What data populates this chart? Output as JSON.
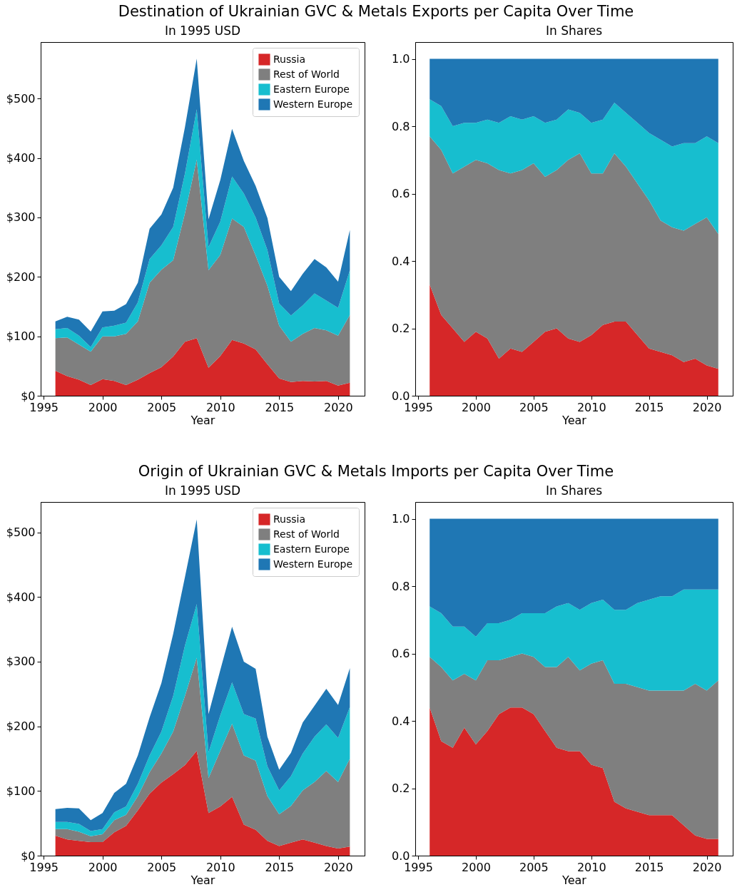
{
  "chart_data": [
    {
      "type": "area",
      "title": "Destination of Ukrainian GVC & Metals Exports per Capita Over Time",
      "subtitle": "In 1995 USD",
      "xlabel": "Year",
      "stacked": true,
      "legend": "top right",
      "x": [
        1996,
        1997,
        1998,
        1999,
        2000,
        2001,
        2002,
        2003,
        2004,
        2005,
        2006,
        2007,
        2008,
        2009,
        2010,
        2011,
        2012,
        2013,
        2014,
        2015,
        2016,
        2017,
        2018,
        2019,
        2020,
        2021
      ],
      "xlim": [
        1994.75,
        2022.25
      ],
      "xticks": [
        1995,
        2000,
        2005,
        2010,
        2015,
        2020
      ],
      "ylim": [
        0,
        595
      ],
      "yticks": [
        {
          "value": 0,
          "label": "$0"
        },
        {
          "value": 100,
          "label": "$100"
        },
        {
          "value": 200,
          "label": "$200"
        },
        {
          "value": 300,
          "label": "$300"
        },
        {
          "value": 400,
          "label": "$400"
        },
        {
          "value": 500,
          "label": "$500"
        }
      ],
      "series": [
        {
          "name": "Russia",
          "color": "#d62728",
          "values": [
            42,
            33,
            27,
            18,
            28,
            25,
            18,
            27,
            38,
            48,
            66,
            91,
            97,
            47,
            67,
            94,
            88,
            78,
            53,
            29,
            23,
            25,
            24,
            25,
            17,
            22
          ]
        },
        {
          "name": "Rest of World",
          "color": "#7f7f7f",
          "values": [
            55,
            65,
            59,
            56,
            72,
            75,
            86,
            98,
            152,
            164,
            162,
            216,
            300,
            164,
            170,
            204,
            196,
            158,
            132,
            89,
            68,
            79,
            90,
            85,
            84,
            114
          ]
        },
        {
          "name": "Eastern Europe",
          "color": "#17becf",
          "values": [
            15,
            16,
            15,
            8,
            15,
            18,
            19,
            32,
            40,
            41,
            56,
            67,
            85,
            39,
            56,
            71,
            56,
            64,
            60,
            37,
            44,
            48,
            58,
            50,
            47,
            75
          ]
        },
        {
          "name": "Western Europe",
          "color": "#1f77b4",
          "values": [
            13,
            19,
            27,
            26,
            27,
            25,
            31,
            33,
            51,
            52,
            66,
            78,
            85,
            47,
            70,
            80,
            55,
            53,
            54,
            45,
            41,
            53,
            58,
            56,
            44,
            68
          ]
        }
      ]
    },
    {
      "type": "area",
      "subtitle": "In Shares",
      "xlabel": "Year",
      "stacked": true,
      "x": [
        1996,
        1997,
        1998,
        1999,
        2000,
        2001,
        2002,
        2003,
        2004,
        2005,
        2006,
        2007,
        2008,
        2009,
        2010,
        2011,
        2012,
        2013,
        2014,
        2015,
        2016,
        2017,
        2018,
        2019,
        2020,
        2021
      ],
      "xlim": [
        1994.75,
        2022.25
      ],
      "xticks": [
        1995,
        2000,
        2005,
        2010,
        2015,
        2020
      ],
      "ylim": [
        0,
        1.05
      ],
      "yticks": [
        {
          "value": 0,
          "label": "0.0"
        },
        0.2,
        0.4,
        0.6,
        0.8,
        {
          "value": 1,
          "label": "1.0"
        }
      ],
      "series": [
        {
          "color": "#d62728",
          "values": [
            0.33,
            0.24,
            0.2,
            0.16,
            0.19,
            0.17,
            0.11,
            0.14,
            0.13,
            0.16,
            0.19,
            0.2,
            0.17,
            0.16,
            0.18,
            0.21,
            0.22,
            0.22,
            0.18,
            0.14,
            0.13,
            0.12,
            0.1,
            0.11,
            0.09,
            0.08
          ]
        },
        {
          "color": "#7f7f7f",
          "values": [
            0.44,
            0.49,
            0.46,
            0.52,
            0.51,
            0.52,
            0.56,
            0.52,
            0.54,
            0.53,
            0.46,
            0.47,
            0.53,
            0.56,
            0.48,
            0.45,
            0.5,
            0.46,
            0.45,
            0.44,
            0.39,
            0.38,
            0.39,
            0.4,
            0.44,
            0.4
          ]
        },
        {
          "color": "#17becf",
          "values": [
            0.11,
            0.13,
            0.14,
            0.13,
            0.11,
            0.13,
            0.14,
            0.17,
            0.15,
            0.14,
            0.16,
            0.15,
            0.15,
            0.12,
            0.15,
            0.16,
            0.15,
            0.16,
            0.18,
            0.2,
            0.24,
            0.24,
            0.26,
            0.24,
            0.24,
            0.27
          ]
        },
        {
          "color": "#1f77b4",
          "values": [
            0.12,
            0.14,
            0.2,
            0.19,
            0.19,
            0.18,
            0.19,
            0.17,
            0.18,
            0.17,
            0.19,
            0.18,
            0.15,
            0.16,
            0.19,
            0.18,
            0.13,
            0.16,
            0.19,
            0.22,
            0.24,
            0.26,
            0.25,
            0.25,
            0.23,
            0.25
          ]
        }
      ]
    },
    {
      "type": "area",
      "title": "Origin of Ukrainian GVC & Metals Imports per Capita Over Time",
      "subtitle": "In 1995 USD",
      "xlabel": "Year",
      "stacked": true,
      "legend": "top right",
      "x": [
        1996,
        1997,
        1998,
        1999,
        2000,
        2001,
        2002,
        2003,
        2004,
        2005,
        2006,
        2007,
        2008,
        2009,
        2010,
        2011,
        2012,
        2013,
        2014,
        2015,
        2016,
        2017,
        2018,
        2019,
        2020,
        2021
      ],
      "xlim": [
        1994.75,
        2022.25
      ],
      "xticks": [
        1995,
        2000,
        2005,
        2010,
        2015,
        2020
      ],
      "ylim": [
        0,
        547
      ],
      "yticks": [
        {
          "value": 0,
          "label": "$0"
        },
        {
          "value": 100,
          "label": "$100"
        },
        {
          "value": 200,
          "label": "$200"
        },
        {
          "value": 300,
          "label": "$300"
        },
        {
          "value": 400,
          "label": "$400"
        },
        {
          "value": 500,
          "label": "$500"
        }
      ],
      "series": [
        {
          "name": "Russia",
          "color": "#d62728",
          "values": [
            31,
            25,
            23,
            21,
            21,
            36,
            46,
            70,
            96,
            113,
            126,
            140,
            162,
            66,
            76,
            91,
            48,
            40,
            23,
            15,
            20,
            25,
            20,
            15,
            11,
            14
          ]
        },
        {
          "name": "Rest of World",
          "color": "#7f7f7f",
          "values": [
            10,
            16,
            14,
            9,
            12,
            19,
            17,
            22,
            33,
            45,
            66,
            107,
            144,
            54,
            86,
            113,
            107,
            107,
            69,
            49,
            57,
            76,
            94,
            116,
            103,
            136
          ]
        },
        {
          "name": "Eastern Europe",
          "color": "#17becf",
          "values": [
            11,
            11,
            12,
            8,
            8,
            12,
            13,
            19,
            26,
            34,
            55,
            78,
            83,
            40,
            55,
            64,
            64,
            65,
            46,
            37,
            46,
            57,
            70,
            72,
            68,
            80
          ]
        },
        {
          "name": "Western Europe",
          "color": "#1f77b4",
          "values": [
            20,
            22,
            24,
            17,
            25,
            30,
            35,
            44,
            59,
            75,
            96,
            106,
            131,
            59,
            70,
            86,
            81,
            77,
            46,
            32,
            36,
            48,
            48,
            55,
            51,
            60
          ]
        }
      ]
    },
    {
      "type": "area",
      "subtitle": "In Shares",
      "xlabel": "Year",
      "stacked": true,
      "x": [
        1996,
        1997,
        1998,
        1999,
        2000,
        2001,
        2002,
        2003,
        2004,
        2005,
        2006,
        2007,
        2008,
        2009,
        2010,
        2011,
        2012,
        2013,
        2014,
        2015,
        2016,
        2017,
        2018,
        2019,
        2020,
        2021
      ],
      "xlim": [
        1994.75,
        2022.25
      ],
      "xticks": [
        1995,
        2000,
        2005,
        2010,
        2015,
        2020
      ],
      "ylim": [
        0,
        1.05
      ],
      "yticks": [
        {
          "value": 0,
          "label": "0.0"
        },
        0.2,
        0.4,
        0.6,
        0.8,
        {
          "value": 1,
          "label": "1.0"
        }
      ],
      "series": [
        {
          "color": "#d62728",
          "values": [
            0.44,
            0.34,
            0.32,
            0.38,
            0.33,
            0.37,
            0.42,
            0.44,
            0.44,
            0.42,
            0.37,
            0.32,
            0.31,
            0.31,
            0.27,
            0.26,
            0.16,
            0.14,
            0.13,
            0.12,
            0.12,
            0.12,
            0.09,
            0.06,
            0.05,
            0.05
          ]
        },
        {
          "color": "#7f7f7f",
          "values": [
            0.15,
            0.22,
            0.2,
            0.16,
            0.19,
            0.21,
            0.16,
            0.15,
            0.16,
            0.17,
            0.19,
            0.24,
            0.28,
            0.24,
            0.3,
            0.32,
            0.35,
            0.37,
            0.37,
            0.37,
            0.37,
            0.37,
            0.4,
            0.45,
            0.44,
            0.47
          ]
        },
        {
          "color": "#17becf",
          "values": [
            0.15,
            0.16,
            0.16,
            0.14,
            0.13,
            0.11,
            0.11,
            0.11,
            0.12,
            0.13,
            0.16,
            0.18,
            0.16,
            0.18,
            0.18,
            0.18,
            0.22,
            0.22,
            0.25,
            0.27,
            0.28,
            0.28,
            0.3,
            0.28,
            0.3,
            0.27
          ]
        },
        {
          "color": "#1f77b4",
          "values": [
            0.26,
            0.28,
            0.32,
            0.32,
            0.35,
            0.31,
            0.31,
            0.3,
            0.28,
            0.28,
            0.28,
            0.26,
            0.25,
            0.27,
            0.25,
            0.24,
            0.27,
            0.27,
            0.25,
            0.24,
            0.23,
            0.23,
            0.21,
            0.21,
            0.21,
            0.21
          ]
        }
      ]
    }
  ]
}
